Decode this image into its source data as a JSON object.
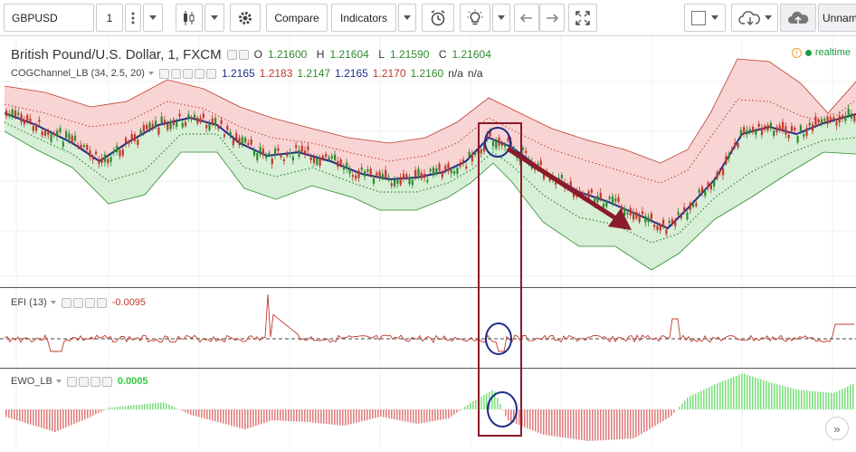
{
  "toolbar": {
    "symbol": "GBPUSD",
    "interval": "1",
    "compare_label": "Compare",
    "indicators_label": "Indicators",
    "layout_name": "Unnam"
  },
  "main_legend": {
    "title": "British Pound/U.S. Dollar, 1, FXCM",
    "open_label": "O",
    "open": "1.21600",
    "high_label": "H",
    "high": "1.21604",
    "low_label": "L",
    "low": "1.21590",
    "close_label": "C",
    "close": "1.21604",
    "realtime_label": "realtime"
  },
  "cog_legend": {
    "name": "COGChannel_LB (34, 2.5, 20)",
    "values": [
      "1.2165",
      "1.2183",
      "1.2147",
      "1.2165",
      "1.2170",
      "1.2160",
      "n/a",
      "n/a"
    ],
    "colors": [
      "#1f2d8a",
      "#c0392b",
      "#2e8b2e",
      "#1f2d8a",
      "#c0392b",
      "#2e8b2e",
      "#333333",
      "#333333"
    ]
  },
  "efi_legend": {
    "name": "EFI (13)",
    "value": "-0.0095"
  },
  "ewo_legend": {
    "name": "EWO_LB",
    "value": "0.0005"
  },
  "colors": {
    "up_candle": "#2e8b2e",
    "down_candle": "#c0392b",
    "upper_band_fill": "#f8d4d4",
    "lower_band_fill": "#d6efd6",
    "center_line": "#1f2d8a",
    "annotation": "#8b1a2a",
    "ewo_positive": "#7ee07e",
    "ewo_negative": "#e08080"
  }
}
